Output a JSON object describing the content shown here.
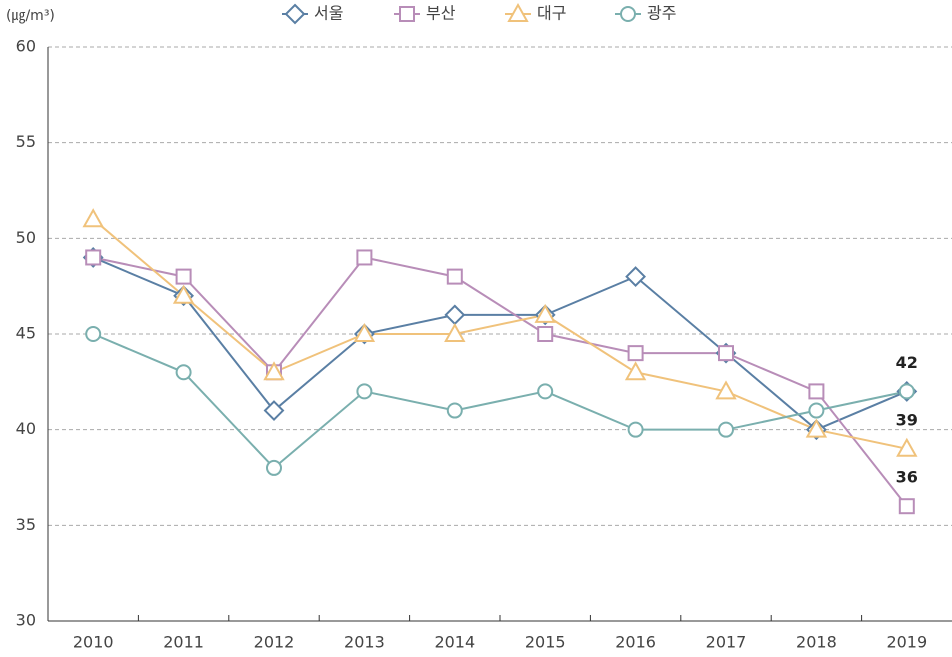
{
  "chart_data": {
    "type": "line",
    "y_label": "(㎍/m³)",
    "categories": [
      "2010",
      "2011",
      "2012",
      "2013",
      "2014",
      "2015",
      "2016",
      "2017",
      "2018",
      "2019"
    ],
    "series": [
      {
        "name": "서울",
        "color": "#5a7fa4",
        "marker": "diamond",
        "values": [
          49,
          47,
          41,
          45,
          46,
          46,
          48,
          44,
          40,
          42
        ]
      },
      {
        "name": "부산",
        "color": "#b88db8",
        "marker": "square",
        "values": [
          49,
          48,
          43,
          49,
          48,
          45,
          44,
          44,
          42,
          36
        ]
      },
      {
        "name": "대구",
        "color": "#f0c27b",
        "marker": "triangle",
        "values": [
          51,
          47,
          43,
          45,
          45,
          46,
          43,
          42,
          40,
          39
        ]
      },
      {
        "name": "광주",
        "color": "#7aafae",
        "marker": "circle",
        "values": [
          45,
          43,
          38,
          42,
          41,
          42,
          40,
          40,
          41,
          42
        ]
      }
    ],
    "ylim": [
      30,
      60
    ],
    "yticks": [
      30,
      35,
      40,
      45,
      50,
      55,
      60
    ],
    "grid": true
  }
}
